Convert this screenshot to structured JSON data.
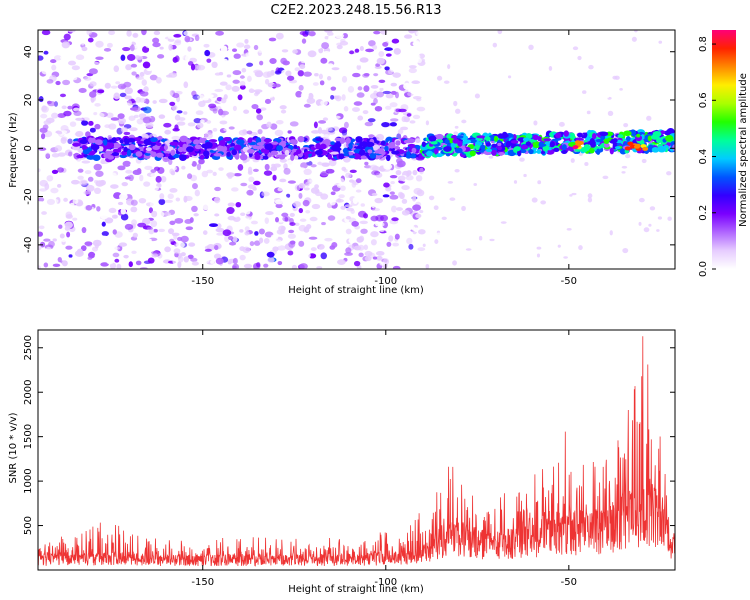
{
  "title": "C2E2.2023.248.15.56.R13",
  "colors": {
    "snr_line": "#ee3333",
    "colormap": [
      "#ffffff",
      "#e6ccff",
      "#b066ff",
      "#7a00ff",
      "#3300ff",
      "#0055ff",
      "#00ccff",
      "#00ff99",
      "#22ff00",
      "#aaff00",
      "#ffee00",
      "#ff8800",
      "#ff2200",
      "#ff0077"
    ]
  },
  "chart_data": [
    {
      "type": "heatmap",
      "title": "C2E2.2023.248.15.56.R13",
      "xlabel": "Height of straight line (km)",
      "ylabel": "Frequency (Hz)",
      "xlim": [
        -195,
        -21
      ],
      "ylim": [
        -50,
        49
      ],
      "xticks": [
        -150,
        -100,
        -50
      ],
      "xtick_labels": [
        "-150",
        "-100",
        "-50"
      ],
      "yticks": [
        -40,
        -20,
        0,
        20,
        40
      ],
      "ytick_labels": [
        "-40",
        "-20",
        "0",
        "20",
        "40"
      ],
      "colorbar": {
        "label": "Normalized spectral amplitude",
        "range": [
          0.0,
          0.85
        ],
        "ticks": [
          0.0,
          0.2,
          0.4,
          0.6,
          0.8
        ],
        "tick_labels": [
          "0.0",
          "0.2",
          "0.4",
          "0.6",
          "0.8"
        ]
      },
      "features": [
        {
          "description": "scattered background noise",
          "x_range": [
            -195,
            -90
          ],
          "freq_range": [
            -50,
            49
          ],
          "amplitude": 0.1
        },
        {
          "description": "narrow band near 0 Hz",
          "x_range": [
            -185,
            -90
          ],
          "center_freq": 0,
          "half_width": 4,
          "amplitude": 0.28
        },
        {
          "description": "stronger band near 0 Hz",
          "x_range": [
            -90,
            -21
          ],
          "center_freq": 1,
          "half_width": 4,
          "amplitude": 0.45
        },
        {
          "description": "peak patches",
          "x_values": [
            -47,
            -33,
            -30
          ],
          "amplitude": 0.85
        }
      ]
    },
    {
      "type": "line",
      "xlabel": "Height of straight line (km)",
      "ylabel": "SNR (10 * v/v)",
      "xlim": [
        -195,
        -21
      ],
      "ylim": [
        0,
        2700
      ],
      "xticks": [
        -150,
        -100,
        -50
      ],
      "xtick_labels": [
        "-150",
        "-100",
        "-50"
      ],
      "yticks": [
        500,
        1000,
        1500,
        2000,
        2500
      ],
      "ytick_labels": [
        "500",
        "1000",
        "1500",
        "2000",
        "2500"
      ],
      "series": [
        {
          "name": "SNR",
          "x": [
            -195,
            -185,
            -175,
            -165,
            -155,
            -145,
            -135,
            -125,
            -115,
            -105,
            -95,
            -90,
            -85,
            -80,
            -75,
            -70,
            -65,
            -60,
            -55,
            -50,
            -45,
            -40,
            -35,
            -30,
            -25,
            -22
          ],
          "baseline": [
            150,
            160,
            170,
            150,
            145,
            150,
            150,
            150,
            150,
            165,
            180,
            230,
            420,
            470,
            410,
            360,
            400,
            450,
            520,
            560,
            540,
            580,
            750,
            850,
            800,
            420
          ],
          "peak": [
            380,
            420,
            600,
            380,
            330,
            360,
            380,
            400,
            380,
            420,
            460,
            680,
            1200,
            1170,
            850,
            900,
            1050,
            1200,
            1350,
            1720,
            1230,
            1320,
            1650,
            2700,
            2500,
            500
          ]
        }
      ]
    }
  ]
}
